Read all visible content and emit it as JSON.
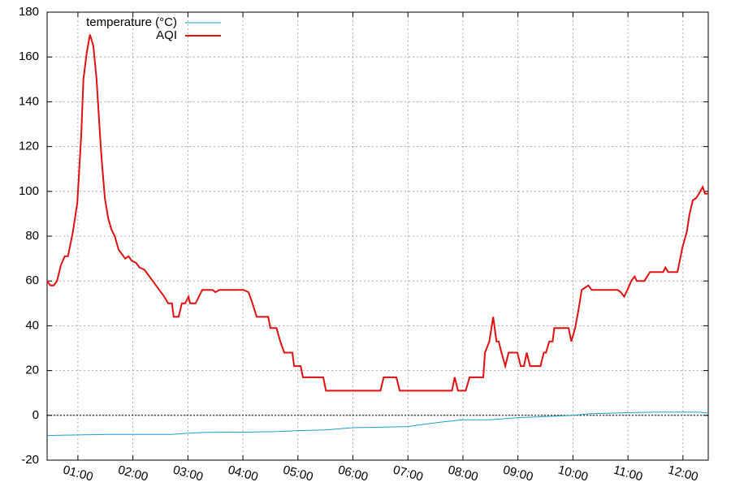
{
  "chart_data": {
    "type": "line",
    "xlim": [
      0.44,
      12.46
    ],
    "xticks": [
      {
        "value": 1,
        "label": "01:00"
      },
      {
        "value": 2,
        "label": "02:00"
      },
      {
        "value": 3,
        "label": "03:00"
      },
      {
        "value": 4,
        "label": "04:00"
      },
      {
        "value": 5,
        "label": "05:00"
      },
      {
        "value": 6,
        "label": "06:00"
      },
      {
        "value": 7,
        "label": "07:00"
      },
      {
        "value": 8,
        "label": "08:00"
      },
      {
        "value": 9,
        "label": "09:00"
      },
      {
        "value": 10,
        "label": "10:00"
      },
      {
        "value": 11,
        "label": "11:00"
      },
      {
        "value": 12,
        "label": "12:00"
      }
    ],
    "ylim": [
      -20,
      180
    ],
    "yticks": [
      -20,
      0,
      20,
      40,
      60,
      80,
      100,
      120,
      140,
      160,
      180
    ],
    "grid": true,
    "zero_line": true,
    "legend": "top-left",
    "series": [
      {
        "name": "temperature (°C)",
        "color": "#1aa0c8",
        "x": [
          0.44,
          0.8,
          1.5,
          2.7,
          3.0,
          3.3,
          4.0,
          4.6,
          5.0,
          5.5,
          6.0,
          6.5,
          7.0,
          7.3,
          7.6,
          8.0,
          8.5,
          9.0,
          9.5,
          10.0,
          10.3,
          11.0,
          11.5,
          12.0,
          12.3,
          12.46
        ],
        "values": [
          -9,
          -8.8,
          -8.5,
          -8.5,
          -8,
          -7.6,
          -7.5,
          -7.3,
          -6.8,
          -6.5,
          -5.5,
          -5.3,
          -5,
          -4,
          -3,
          -2,
          -2,
          -1,
          -0.5,
          0,
          0.7,
          1.2,
          1.5,
          1.5,
          1.4,
          1.0
        ]
      },
      {
        "name": "AQI",
        "color": "#e01010",
        "x": [
          0.44,
          0.5,
          0.56,
          0.62,
          0.69,
          0.76,
          0.82,
          0.91,
          0.99,
          1.06,
          1.1,
          1.16,
          1.22,
          1.28,
          1.34,
          1.39,
          1.43,
          1.49,
          1.55,
          1.61,
          1.67,
          1.74,
          1.8,
          1.86,
          1.92,
          1.98,
          2.06,
          2.12,
          2.21,
          2.27,
          2.36,
          2.48,
          2.57,
          2.64,
          2.71,
          2.74,
          2.83,
          2.89,
          2.95,
          3.01,
          3.04,
          3.14,
          3.26,
          3.45,
          3.5,
          3.57,
          4.01,
          4.1,
          4.16,
          4.25,
          4.46,
          4.5,
          4.61,
          4.68,
          4.75,
          4.9,
          4.93,
          5.05,
          5.09,
          5.46,
          5.51,
          6.5,
          6.56,
          6.79,
          6.85,
          7.8,
          7.85,
          7.91,
          8.05,
          8.12,
          8.37,
          8.4,
          8.48,
          8.55,
          8.61,
          8.65,
          8.7,
          8.77,
          8.83,
          8.99,
          9.05,
          9.11,
          9.16,
          9.22,
          9.41,
          9.47,
          9.51,
          9.57,
          9.63,
          9.66,
          9.92,
          9.97,
          10.04,
          10.1,
          10.16,
          10.22,
          10.28,
          10.34,
          10.81,
          10.87,
          10.93,
          10.99,
          11.06,
          11.12,
          11.16,
          11.3,
          11.4,
          11.64,
          11.68,
          11.73,
          11.9,
          11.99,
          12.07,
          12.12,
          12.18,
          12.24,
          12.29,
          12.36,
          12.4,
          12.46
        ],
        "values": [
          60,
          58,
          58,
          60,
          67,
          71,
          71,
          82,
          95,
          125,
          150,
          162,
          170,
          165,
          150,
          130,
          115,
          97,
          88,
          83,
          80,
          74,
          72,
          70,
          71,
          69,
          68,
          66,
          65,
          63,
          60,
          56,
          53,
          50,
          50,
          44,
          44,
          50,
          50,
          53,
          50,
          50,
          56,
          56,
          55,
          56,
          56,
          55,
          51,
          44,
          44,
          39,
          39,
          33,
          28,
          28,
          22,
          22,
          17,
          17,
          11,
          11,
          17,
          17,
          11,
          11,
          17,
          11,
          11,
          17,
          17,
          28,
          33,
          44,
          33,
          33,
          28,
          22,
          28,
          28,
          22,
          22,
          28,
          22,
          22,
          28,
          28,
          33,
          33,
          39,
          39,
          33,
          39,
          47,
          56,
          57,
          58,
          56,
          56,
          55,
          53,
          56,
          60,
          62,
          60,
          60,
          64,
          64,
          66,
          64,
          64,
          75,
          82,
          90,
          96,
          97,
          99,
          102,
          99,
          99
        ]
      }
    ]
  }
}
